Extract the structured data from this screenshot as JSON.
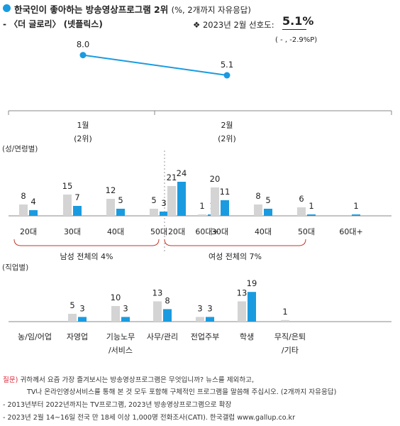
{
  "header": {
    "title": "한국인이 좋아하는 방송영상프로그램 2위",
    "title_unit": "(%, 2개까지 자유응답)",
    "subtitle": "- 〈더 글로리〉 (넷플릭스)",
    "pref_label": "❖  2023년 2월 선호도:",
    "pref_value": "5.1%",
    "change": "( - , -2.9%P)"
  },
  "colors": {
    "accent": "#1a9be0",
    "male_gray": "#d4d4d4",
    "question_red": "#d22233"
  },
  "chart_data": [
    {
      "type": "line",
      "categories": [
        "1월",
        "2월"
      ],
      "category_ranks": [
        "(2위)",
        "(2위)"
      ],
      "values": [
        8.0,
        5.1
      ],
      "value_labels": [
        "8.0",
        "5.1"
      ]
    },
    {
      "type": "bar",
      "section_label": "(성/연령별)",
      "groups": [
        {
          "label": "남성 전체의 4%",
          "categories": [
            "20대",
            "30대",
            "40대",
            "50대",
            "60대+"
          ],
          "values_gray": [
            8,
            15,
            12,
            5,
            1
          ],
          "values_blue": [
            4,
            7,
            5,
            3,
            1
          ]
        },
        {
          "label": "여성 전체의 7%",
          "categories": [
            "20대",
            "30대",
            "40대",
            "50대",
            "60대+"
          ],
          "values_gray": [
            21,
            20,
            8,
            6,
            null
          ],
          "values_blue": [
            24,
            11,
            5,
            1,
            1
          ]
        }
      ]
    },
    {
      "type": "bar",
      "section_label": "(직업별)",
      "categories": [
        "농/임/어업",
        "자영업",
        "기능노무\n/서비스",
        "사무/관리",
        "전업주부",
        "학생",
        "무직/은퇴\n/기타"
      ],
      "values_gray": [
        null,
        5,
        10,
        13,
        3,
        13,
        1
      ],
      "values_blue": [
        null,
        3,
        3,
        8,
        3,
        19,
        null
      ]
    }
  ],
  "footnotes": {
    "question_label": "질문)",
    "question_line1": "귀하께서 요즘 가장 즐겨보시는 방송영상프로그램은 무엇입니까? 뉴스를 제외하고,",
    "question_line2": "TV나 온라인영상서비스를 통해 본 것 모두 포함해 구체적인 프로그램을 말씀해 주십시오. (2개까지 자유응답)",
    "note1": "- 2013년부터 2022년까지는 TV프로그램, 2023년 방송영상프로그램으로 확장",
    "note2": "- 2023년 2월 14~16일 전국 만 18세 이상 1,000명 전화조사(CATI). 한국갤럽 www.gallup.co.kr"
  }
}
